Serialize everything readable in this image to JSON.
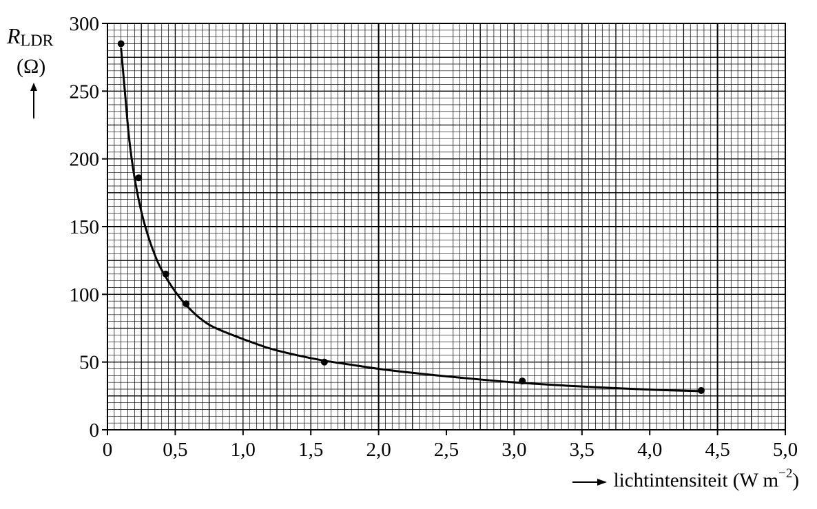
{
  "chart_data": {
    "type": "scatter",
    "title": "",
    "xlabel": {
      "arrow": "→",
      "text": "lichtintensiteit",
      "unit_open": "(W m",
      "unit_exp": "−2",
      "unit_close": ")"
    },
    "ylabel": {
      "symbol": "R",
      "subscript": "LDR",
      "unit": "(Ω)",
      "arrow": "↑"
    },
    "xlim": [
      0,
      5.0
    ],
    "ylim": [
      0,
      300
    ],
    "x_ticks": [
      0,
      0.5,
      1.0,
      1.5,
      2.0,
      2.5,
      3.0,
      3.5,
      4.0,
      4.5,
      5.0
    ],
    "x_tick_labels": [
      "0",
      "0,5",
      "1,0",
      "1,5",
      "2,0",
      "2,5",
      "3,0",
      "3,5",
      "4,0",
      "4,5",
      "5,0"
    ],
    "y_ticks": [
      0,
      50,
      100,
      150,
      200,
      250,
      300
    ],
    "y_tick_labels": [
      "0",
      "50",
      "100",
      "150",
      "200",
      "250",
      "300"
    ],
    "grid": true,
    "points": [
      {
        "x": 0.1,
        "y": 285
      },
      {
        "x": 0.23,
        "y": 186
      },
      {
        "x": 0.43,
        "y": 115
      },
      {
        "x": 0.58,
        "y": 93
      },
      {
        "x": 1.6,
        "y": 50
      },
      {
        "x": 3.06,
        "y": 36
      },
      {
        "x": 4.38,
        "y": 29
      }
    ],
    "fit_curve": {
      "x": [
        0.1,
        0.13,
        0.16,
        0.2,
        0.25,
        0.3,
        0.35,
        0.4,
        0.5,
        0.6,
        0.7,
        0.8,
        1.0,
        1.2,
        1.4,
        1.6,
        1.8,
        2.0,
        2.3,
        2.6,
        3.0,
        3.4,
        3.8,
        4.1,
        4.38
      ],
      "y": [
        282,
        248,
        215,
        186,
        161,
        143,
        129,
        118,
        102,
        90,
        81,
        75,
        67,
        60,
        55,
        51,
        48,
        45,
        41.5,
        38.5,
        35,
        32.5,
        30.5,
        29.3,
        28.5
      ]
    }
  }
}
